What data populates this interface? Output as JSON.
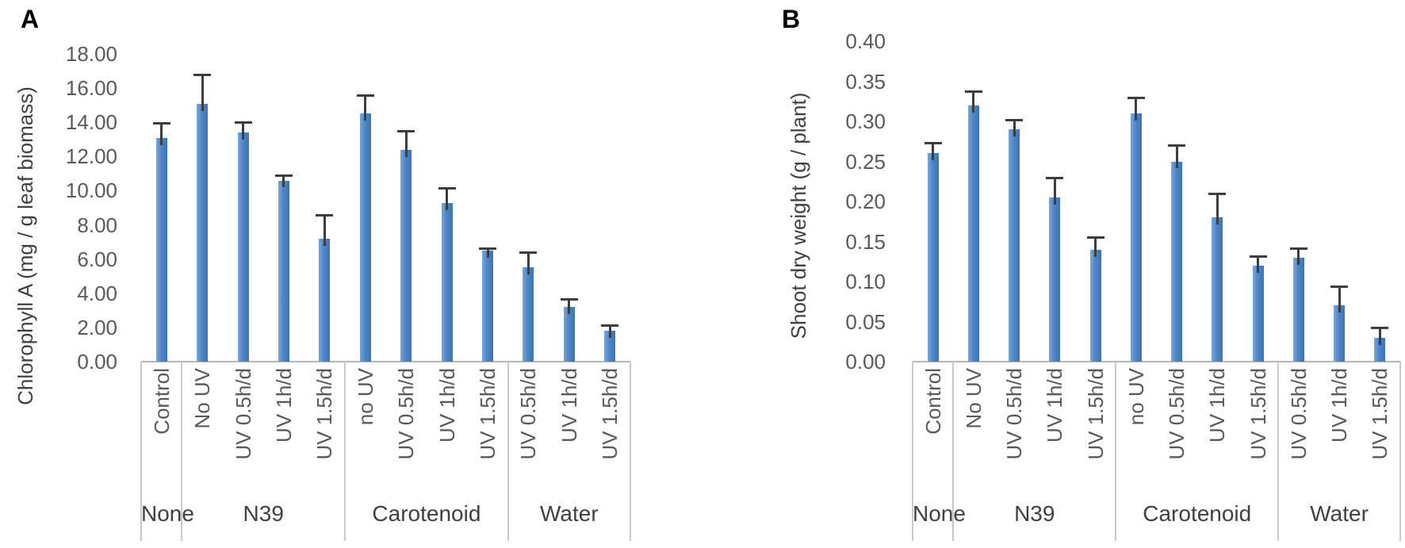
{
  "figure": {
    "background": "#ffffff"
  },
  "colors": {
    "bar": "#4e86c6",
    "bar_light": "#7aa6d9",
    "bar_dark": "#3f74b4",
    "error": "#3d3d3d",
    "axis_line": "#b7b7b7",
    "divider": "#c9c9c9",
    "tick_text": "#595959",
    "group_text": "#404040",
    "title_text": "#3f3f3f",
    "panel_letter": "#000000"
  },
  "chart_data": [
    {
      "type": "bar",
      "panel_letter": "A",
      "title": "",
      "xlabel": "",
      "ylabel": "Chlorophyll A (mg / g leaf biomass)",
      "ylim": [
        0,
        18
      ],
      "ytick_step": 2,
      "yticks": [
        "18.00",
        "16.00",
        "14.00",
        "12.00",
        "10.00",
        "8.00",
        "6.00",
        "4.00",
        "2.00",
        "0.00"
      ],
      "grid": false,
      "legend": "none",
      "error_bars": "upper",
      "categories": [
        "Control",
        "No UV",
        "UV 0.5h/d",
        "UV 1h/d",
        "UV 1.5h/d",
        "no UV",
        "UV 0.5h/d",
        "UV 1h/d",
        "UV 1.5h/d",
        "UV 0.5h/d",
        "UV 1h/d",
        "UV 1.5h/d"
      ],
      "groups": [
        {
          "label": "None",
          "span": 1
        },
        {
          "label": "N39",
          "span": 4
        },
        {
          "label": "Carotenoid",
          "span": 4
        },
        {
          "label": "Water",
          "span": 3
        }
      ],
      "values": [
        13.1,
        15.1,
        13.4,
        10.6,
        7.2,
        14.5,
        12.4,
        9.3,
        6.5,
        5.5,
        3.2,
        1.8
      ],
      "errors": [
        0.85,
        1.7,
        0.6,
        0.3,
        1.4,
        1.1,
        1.1,
        0.85,
        0.15,
        0.9,
        0.45,
        0.35
      ]
    },
    {
      "type": "bar",
      "panel_letter": "B",
      "title": "",
      "xlabel": "",
      "ylabel": "Shoot dry weight (g / plant)",
      "ylim": [
        0,
        0.4
      ],
      "ytick_step": 0.05,
      "yticks": [
        "0.40",
        "0.35",
        "0.30",
        "0.25",
        "0.20",
        "0.15",
        "0.10",
        "0.05",
        "0.00"
      ],
      "grid": false,
      "legend": "none",
      "error_bars": "upper",
      "categories": [
        "Control",
        "No UV",
        "UV 0.5h/d",
        "UV 1h/d",
        "UV 1.5h/d",
        "no UV",
        "UV 0.5h/d",
        "UV 1h/d",
        "UV 1.5h/d",
        "UV 0.5h/d",
        "UV 1h/d",
        "UV 1.5h/d"
      ],
      "groups": [
        {
          "label": "None",
          "span": 1
        },
        {
          "label": "N39",
          "span": 4
        },
        {
          "label": "Carotenoid",
          "span": 4
        },
        {
          "label": "Water",
          "span": 3
        }
      ],
      "values": [
        0.26,
        0.32,
        0.29,
        0.205,
        0.14,
        0.31,
        0.25,
        0.18,
        0.12,
        0.13,
        0.07,
        0.03
      ],
      "errors": [
        0.013,
        0.018,
        0.012,
        0.025,
        0.015,
        0.02,
        0.02,
        0.03,
        0.012,
        0.012,
        0.024,
        0.013
      ]
    }
  ]
}
